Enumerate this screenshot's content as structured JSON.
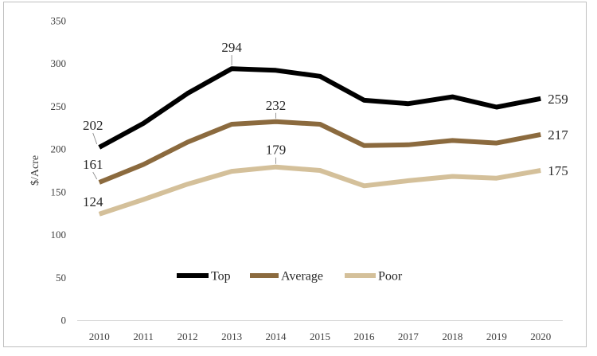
{
  "chart_data": {
    "type": "line",
    "title": "",
    "xlabel": "",
    "ylabel": "$/Acre",
    "categories": [
      "2010",
      "2011",
      "2012",
      "2013",
      "2014",
      "2015",
      "2016",
      "2017",
      "2018",
      "2019",
      "2020"
    ],
    "ylim": [
      0,
      350
    ],
    "yticks": [
      0,
      50,
      100,
      150,
      200,
      250,
      300,
      350
    ],
    "grid": false,
    "legend_position": "bottom-center",
    "series": [
      {
        "name": "Top",
        "color": "#000000",
        "values": [
          202,
          230,
          265,
          294,
          292,
          285,
          257,
          253,
          261,
          249,
          259
        ],
        "labels": [
          {
            "index": 0,
            "text": "202"
          },
          {
            "index": 3,
            "text": "294"
          },
          {
            "index": 10,
            "text": "259"
          }
        ]
      },
      {
        "name": "Average",
        "color": "#8b6a3e",
        "values": [
          161,
          182,
          208,
          229,
          232,
          229,
          204,
          205,
          210,
          207,
          217
        ],
        "labels": [
          {
            "index": 0,
            "text": "161"
          },
          {
            "index": 4,
            "text": "232"
          },
          {
            "index": 10,
            "text": "217"
          }
        ]
      },
      {
        "name": "Poor",
        "color": "#d4c09a",
        "values": [
          124,
          141,
          159,
          174,
          179,
          175,
          157,
          163,
          168,
          166,
          175
        ],
        "labels": [
          {
            "index": 0,
            "text": "124"
          },
          {
            "index": 4,
            "text": "179"
          },
          {
            "index": 10,
            "text": "175"
          }
        ]
      }
    ]
  }
}
